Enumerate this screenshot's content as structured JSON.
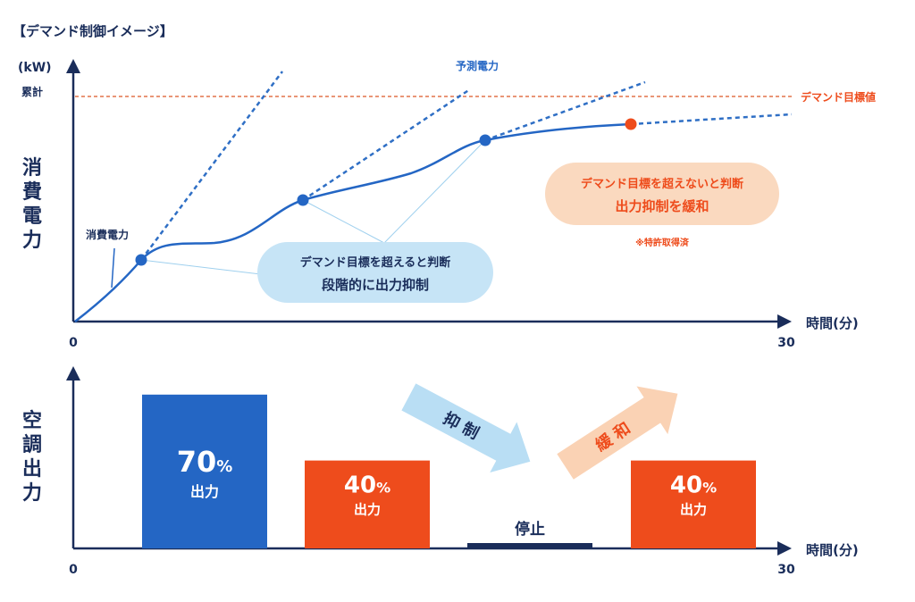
{
  "heading": "【デマンド制御イメージ】",
  "colors": {
    "navy": "#1a2d5a",
    "blue": "#2466c4",
    "dash_blue": "#2f6fc5",
    "orange": "#ee4c1c",
    "light_blue": "#c6e4f6",
    "light_orange": "#fad9bf",
    "ref_line": "#e2734a"
  },
  "top_chart": {
    "y_unit": "(kW)",
    "y_sub": "累計",
    "y_title": "消費電力",
    "x_label": "時間(分)",
    "x_min": "0",
    "x_max": "30",
    "demand_target_label": "デマンド目標値",
    "forecast_label": "予測電力",
    "consumption_label": "消費電力",
    "callout_blue": {
      "line1": "デマンド目標を超えると判断",
      "line2": "段階的に出力抑制"
    },
    "callout_orange": {
      "line1": "デマンド目標を超えないと判断",
      "line2": "出力抑制を緩和"
    },
    "patent_note": "※特許取得済"
  },
  "bottom_chart": {
    "y_title": "空調出力",
    "x_label": "時間(分)",
    "x_min": "0",
    "x_max": "30",
    "bars": [
      {
        "value": "70",
        "unit": "%",
        "label": "出力",
        "level": 0.7
      },
      {
        "value": "40",
        "unit": "%",
        "label": "出力",
        "level": 0.4
      },
      {
        "label": "停止",
        "level": 0.0
      },
      {
        "value": "40",
        "unit": "%",
        "label": "出力",
        "level": 0.4
      }
    ],
    "arrow_suppress": "抑制",
    "arrow_relax": "緩和"
  }
}
